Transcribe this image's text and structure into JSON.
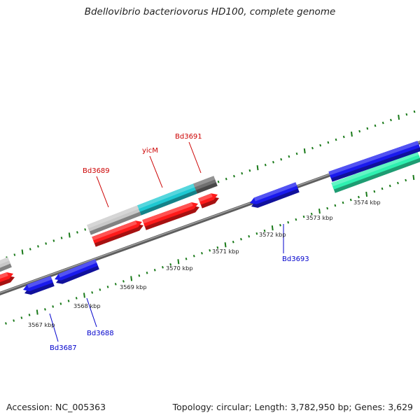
{
  "header": {
    "title": "Bdellovibrio bacteriovorus HD100, complete genome"
  },
  "footer": {
    "accession": "Accession: NC_005363",
    "topology": "Topology: circular; Length: 3,782,950 bp; Genes: 3,629"
  },
  "colors": {
    "backbone": "#7f7f7f",
    "tick": "#1a7a1a",
    "ruler_label": "#222222",
    "red_label": "#cc0000",
    "blue_label": "#0000cc",
    "gene_red": "#ff1a1a",
    "gene_blue": "#1a1aee",
    "gene_cyan": "#1ec8d2",
    "gene_gray": "#c8c8c8",
    "gene_dark": "#707070",
    "gene_green": "#2ef0b0"
  },
  "ruler": {
    "unit": "kbp",
    "labels": [
      "3567 kbp",
      "3568 kbp",
      "3569 kbp",
      "3570 kbp",
      "3571 kbp",
      "3572 kbp",
      "3573 kbp",
      "3574 kbp"
    ]
  },
  "genes": [
    {
      "name": "Bd3687",
      "color": "blue",
      "strand": "minus"
    },
    {
      "name": "Bd3688",
      "color": "blue",
      "strand": "minus"
    },
    {
      "name": "Bd3689",
      "color": "gray",
      "strand": "plus"
    },
    {
      "name": "yicM",
      "color": "cyan",
      "strand": "plus"
    },
    {
      "name": "Bd3691",
      "color": "dark",
      "strand": "plus"
    },
    {
      "name": "Bd3693",
      "color": "blue",
      "strand": "minus"
    }
  ],
  "gene_labels": [
    {
      "text": "Bd3689",
      "color": "red"
    },
    {
      "text": "yicM",
      "color": "red"
    },
    {
      "text": "Bd3691",
      "color": "red"
    },
    {
      "text": "Bd3693",
      "color": "blue"
    },
    {
      "text": "Bd3687",
      "color": "blue"
    },
    {
      "text": "Bd3688",
      "color": "blue"
    }
  ]
}
